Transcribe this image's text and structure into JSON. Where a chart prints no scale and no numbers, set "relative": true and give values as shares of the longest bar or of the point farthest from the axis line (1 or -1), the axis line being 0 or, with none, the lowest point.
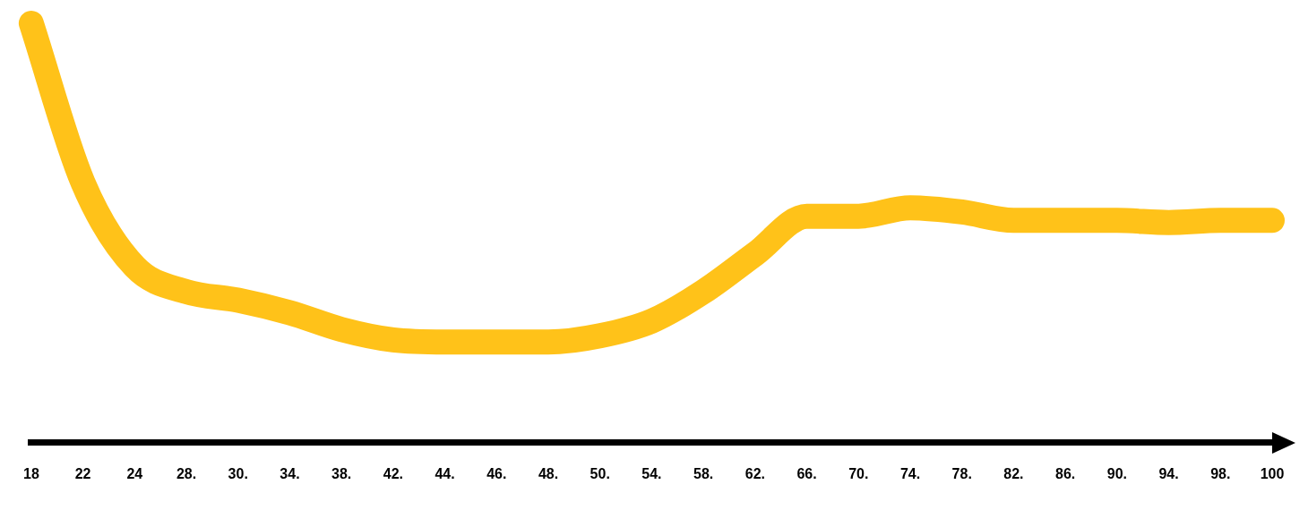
{
  "chart_data": {
    "type": "line",
    "relative": true,
    "color": "#ffc219",
    "categories": [
      "18",
      "22",
      "24",
      "28.",
      "30.",
      "34.",
      "38.",
      "42.",
      "44.",
      "46.",
      "48.",
      "50.",
      "54.",
      "58.",
      "62.",
      "66.",
      "70.",
      "74.",
      "78.",
      "82.",
      "86.",
      "90.",
      "94.",
      "98.",
      "100"
    ],
    "values": [
      1,
      0.62,
      0.42,
      0.36,
      0.34,
      0.31,
      0.27,
      0.245,
      0.24,
      0.24,
      0.24,
      0.255,
      0.29,
      0.36,
      0.45,
      0.54,
      0.54,
      0.56,
      0.55,
      0.53,
      0.53,
      0.53,
      0.525,
      0.53,
      0.53
    ]
  }
}
